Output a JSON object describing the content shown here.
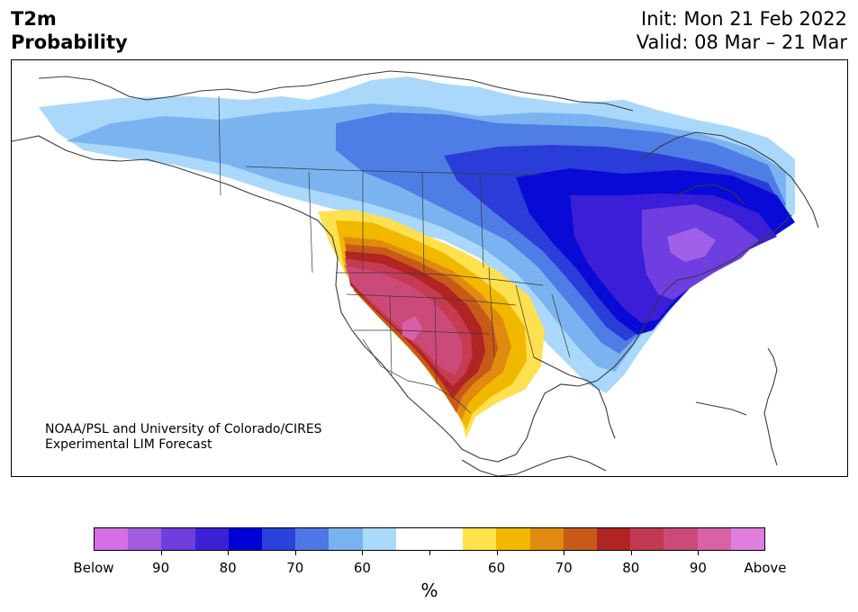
{
  "header": {
    "title_line1": "T2m",
    "title_line2": "Probability",
    "init": "Init: Mon 21 Feb 2022",
    "valid": "Valid: 08 Mar – 21 Mar"
  },
  "map": {
    "credit_line1": "NOAA/PSL and University of Colorado/CIRES",
    "credit_line2": "Experimental LIM Forecast",
    "colors": {
      "coast": "#3a3a3a",
      "cold_light": "#a9d8fb",
      "cold_2": "#7ab3f0",
      "cold_3": "#4f7de6",
      "cold_4": "#2a3dd8",
      "cold_5": "#0a0ad6",
      "cold_6": "#3a1ed8",
      "cold_7": "#6e3ee0",
      "cold_8": "#a060e8",
      "warm_1": "#ffe050",
      "warm_2": "#f2b800",
      "warm_3": "#e08a10",
      "warm_4": "#c85a18",
      "warm_5": "#b02424",
      "warm_6": "#c63a52",
      "warm_7": "#cc4a7a",
      "warm_8": "#d860a8"
    }
  },
  "colorbar": {
    "colors": [
      "#d46fe6",
      "#a35be0",
      "#6e3fdc",
      "#3a22d4",
      "#0000d6",
      "#2a42dc",
      "#4f78e6",
      "#7ab2f0",
      "#aadafb",
      "#ffffff",
      "#ffffff",
      "#ffe24a",
      "#f2b800",
      "#e08a10",
      "#c85a18",
      "#b02424",
      "#c23a52",
      "#cc4a7a",
      "#d862a6",
      "#e07ee0"
    ],
    "labels": [
      "Below",
      "90",
      "80",
      "70",
      "60",
      "",
      "60",
      "70",
      "80",
      "90",
      "Above"
    ],
    "units": "%"
  }
}
